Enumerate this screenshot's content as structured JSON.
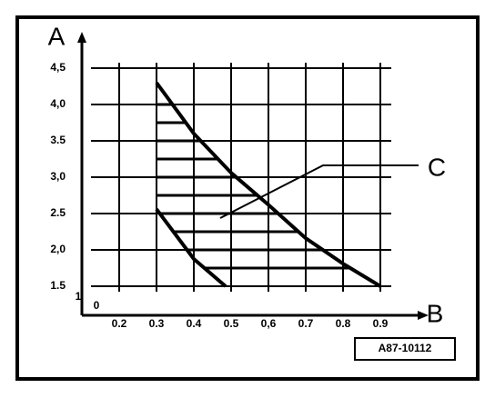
{
  "chart_data": {
    "type": "line",
    "x_label": "B",
    "y_label": "A",
    "annotation": "C",
    "reference": "A87-10112",
    "origin_labels": [
      "1",
      "0"
    ],
    "series": [
      {
        "x": [
          0.3,
          0.4,
          0.5,
          0.6,
          0.7,
          0.8,
          0.9
        ],
        "values": [
          4.3,
          3.6,
          3.06,
          2.62,
          2.16,
          1.81,
          1.5
        ],
        "color": "#000000"
      },
      {
        "x": [
          0.3,
          0.4,
          0.485
        ],
        "values": [
          2.56,
          1.875,
          1.5
        ],
        "color": "#000000"
      }
    ],
    "xlim": [
      0.1,
      1.0
    ],
    "xticks": [
      0.2,
      0.3,
      0.4,
      0.5,
      {
        "value": 0.6,
        "label": "0,6"
      },
      0.7,
      0.8,
      0.9
    ],
    "ylim": [
      1.1,
      4.8
    ],
    "yticks": [
      1.5,
      {
        "value": 2,
        "label": "2,0"
      },
      2.5,
      {
        "value": 3,
        "label": "3,0"
      },
      3.5,
      {
        "value": 4,
        "label": "4,0"
      },
      {
        "value": 4.5,
        "label": "4,5"
      }
    ],
    "grid": true
  }
}
